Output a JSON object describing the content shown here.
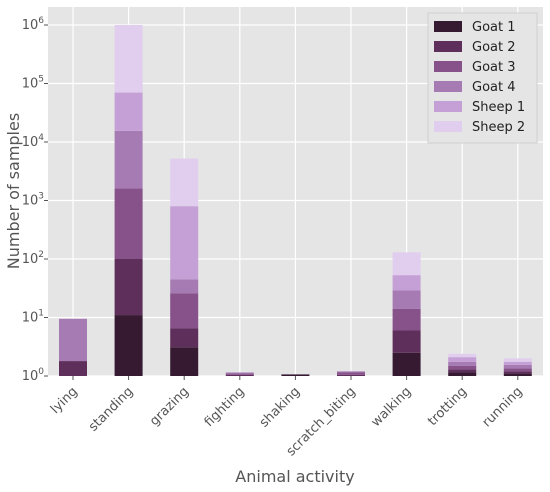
{
  "chart_data": {
    "type": "bar",
    "stacked": true,
    "yscale": "log",
    "ylim": [
      1,
      1500000
    ],
    "grid": true,
    "legend_position": "top-right",
    "xlabel": "Animal activity",
    "ylabel": "Number of samples",
    "categories": [
      "lying",
      "standing",
      "grazing",
      "fighting",
      "shaking",
      "scratch_biting",
      "walking",
      "trotting",
      "running"
    ],
    "y_ticks": [
      {
        "value": 1,
        "base": "10",
        "exp": "0"
      },
      {
        "value": 10,
        "base": "10",
        "exp": "1"
      },
      {
        "value": 100,
        "base": "10",
        "exp": "2"
      },
      {
        "value": 1000,
        "base": "10",
        "exp": "3"
      },
      {
        "value": 10000,
        "base": "10",
        "exp": "4"
      },
      {
        "value": 100000,
        "base": "10",
        "exp": "5"
      },
      {
        "value": 1000000,
        "base": "10",
        "exp": "6"
      }
    ],
    "series": [
      {
        "name": "Goat 1",
        "color": "#361A32",
        "cumulative": [
          1,
          11,
          3.1,
          1,
          1,
          1,
          2.5,
          1.15,
          1.1
        ]
      },
      {
        "name": "Goat 2",
        "color": "#5F2F5B",
        "cumulative": [
          1.8,
          100,
          6.5,
          1.05,
          1,
          1.05,
          6,
          1.3,
          1.2
        ]
      },
      {
        "name": "Goat 3",
        "color": "#87518A",
        "cumulative": [
          1.8,
          1600,
          26,
          1.1,
          1,
          1.15,
          14,
          1.5,
          1.35
        ]
      },
      {
        "name": "Goat 4",
        "color": "#A67BB4",
        "cumulative": [
          9.5,
          15500,
          45,
          1.15,
          1,
          1.2,
          29,
          1.75,
          1.55
        ]
      },
      {
        "name": "Sheep 1",
        "color": "#C5A0D6",
        "cumulative": [
          9.5,
          70000,
          800,
          1.15,
          1,
          1.2,
          53,
          2.1,
          1.75
        ]
      },
      {
        "name": "Sheep 2",
        "color": "#E1CDEE",
        "cumulative": [
          9.5,
          1000000,
          5200,
          1.15,
          1,
          1.2,
          130,
          2.4,
          2.0
        ]
      }
    ]
  }
}
